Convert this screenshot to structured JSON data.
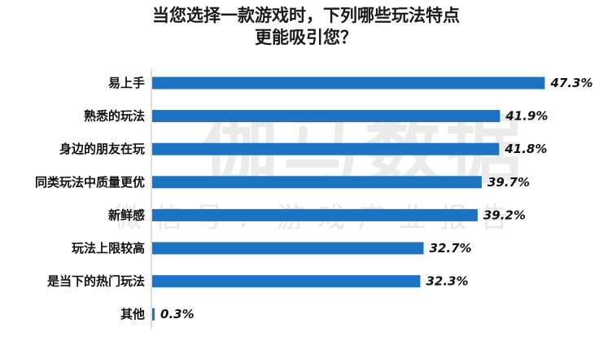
{
  "chart_data": {
    "type": "bar",
    "orientation": "horizontal",
    "title_line1": "当您选择一款游戏时，下列哪些玩法特点",
    "title_line2": "更能吸引您？",
    "categories": [
      "易上手",
      "熟悉的玩法",
      "身边的朋友在玩",
      "同类玩法中质量更优",
      "新鲜感",
      "玩法上限较高",
      "是当下的热门玩法",
      "其他"
    ],
    "values": [
      47.3,
      41.9,
      41.8,
      39.7,
      39.2,
      32.7,
      32.3,
      0.3
    ],
    "value_labels": [
      "47.3%",
      "41.9%",
      "41.8%",
      "39.7%",
      "39.2%",
      "32.7%",
      "32.3%",
      "0.3%"
    ],
    "unit": "%",
    "xlim": [
      0,
      50
    ],
    "grid": false,
    "legend": "none",
    "bar_color": "#1b73c1"
  },
  "watermark": {
    "main": "伽马数据",
    "sub": "微信号：游戏产业报告"
  }
}
